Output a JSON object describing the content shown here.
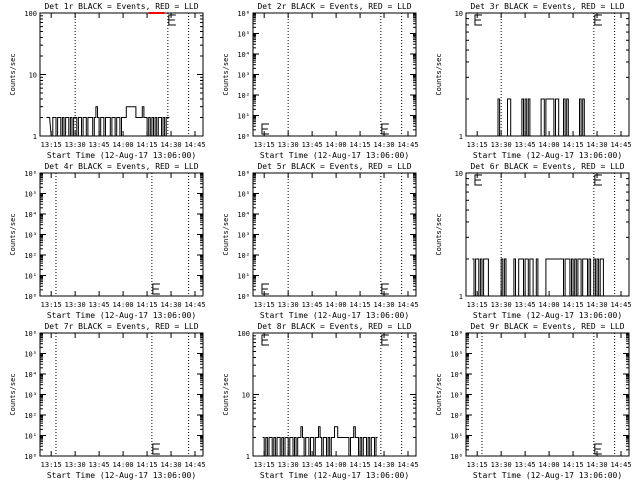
{
  "colors": {
    "background": "#ffffff",
    "axes": "#000000",
    "events": "#000000",
    "lld": "#ff0000"
  },
  "chart_data": [
    {
      "type": "line",
      "title": "Det 1r BLACK = Events, RED = LLD",
      "xlabel": "Start Time (12-Aug-17 13:06:00)",
      "ylabel": "Counts/sec",
      "x_ticks": [
        "13:15",
        "13:30",
        "13:45",
        "14:00",
        "14:15",
        "14:30",
        "14:45"
      ],
      "y_scale": "log",
      "ylim": [
        1,
        100
      ],
      "y_ticks": [
        "1",
        "10",
        "100"
      ],
      "grid": "dotted vertical lines",
      "markers": [
        "13:30",
        "14:28",
        "14:41"
      ],
      "e_markers": [
        {
          "x": "14:28",
          "y": 100
        }
      ],
      "series": [
        {
          "color": "black",
          "x": [
            "13:12",
            "13:13",
            "13:15",
            "13:16",
            "13:17",
            "13:18",
            "13:19",
            "13:20",
            "13:21",
            "13:22",
            "13:23",
            "13:24",
            "13:25",
            "13:26",
            "13:27",
            "13:28",
            "13:29",
            "13:30",
            "13:31",
            "13:32",
            "13:33",
            "13:34",
            "13:35",
            "13:36",
            "13:37",
            "13:38",
            "13:39",
            "13:40",
            "13:41",
            "13:42",
            "13:43",
            "13:44",
            "13:45",
            "13:46",
            "13:47",
            "13:48",
            "13:49",
            "13:50",
            "13:51",
            "13:52",
            "13:53",
            "13:54",
            "13:55",
            "13:56",
            "13:57",
            "13:58",
            "13:59",
            "14:00",
            "14:01",
            "14:02",
            "14:03",
            "14:04",
            "14:05",
            "14:06",
            "14:07",
            "14:08",
            "14:09",
            "14:10",
            "14:11",
            "14:12",
            "14:13",
            "14:14",
            "14:15",
            "14:16",
            "14:17",
            "14:18",
            "14:19",
            "14:20",
            "14:21",
            "14:22",
            "14:23",
            "14:24",
            "14:25",
            "14:26",
            "14:27",
            "14:28"
          ],
          "y": [
            2,
            2,
            1,
            2,
            2,
            1,
            2,
            2,
            1,
            2,
            1,
            2,
            2,
            1,
            2,
            1,
            2,
            2,
            1,
            2,
            2,
            1,
            2,
            2,
            1,
            2,
            2,
            2,
            1,
            2,
            3,
            2,
            1,
            2,
            2,
            1,
            2,
            2,
            2,
            1,
            2,
            2,
            1,
            2,
            2,
            1,
            2,
            2,
            2,
            3,
            3,
            3,
            3,
            3,
            3,
            2,
            2,
            2,
            2,
            3,
            2,
            2,
            1,
            2,
            1,
            2,
            1,
            2,
            1,
            2,
            2,
            1,
            2,
            1,
            2,
            2
          ]
        },
        {
          "color": "red",
          "x": [
            "14:16",
            "14:17",
            "14:18",
            "14:19",
            "14:20",
            "14:21",
            "14:22",
            "14:23",
            "14:24",
            "14:25"
          ],
          "y": [
            100,
            100,
            100,
            100,
            100,
            100,
            100,
            100,
            100,
            100
          ]
        }
      ]
    },
    {
      "type": "line",
      "title": "Det 2r BLACK = Events, RED = LLD",
      "xlabel": "Start Time (12-Aug-17 13:06:00)",
      "ylabel": "Counts/sec",
      "x_ticks": [
        "13:15",
        "13:30",
        "13:45",
        "14:00",
        "14:15",
        "14:30",
        "14:45"
      ],
      "y_scale": "log",
      "ylim": [
        1,
        1000000
      ],
      "y_ticks": [
        "10⁰",
        "10¹",
        "10²",
        "10³",
        "10⁴",
        "10⁵",
        "10⁶"
      ],
      "grid": "dotted vertical lines",
      "markers": [
        "13:30",
        "14:28",
        "14:41"
      ],
      "e_markers": [
        {
          "x": "13:13",
          "y": 1.6
        },
        {
          "x": "14:28",
          "y": 1.6
        }
      ],
      "series": []
    },
    {
      "type": "line",
      "title": "Det 3r BLACK = Events, RED = LLD",
      "xlabel": "Start Time (12-Aug-17 13:06:00)",
      "ylabel": "Counts/sec",
      "x_ticks": [
        "13:15",
        "13:30",
        "13:45",
        "14:00",
        "14:15",
        "14:30",
        "14:45"
      ],
      "y_scale": "log",
      "ylim": [
        1,
        10
      ],
      "y_ticks": [
        "1",
        "10"
      ],
      "grid": "dotted vertical lines",
      "markers": [
        "13:30",
        "14:28",
        "14:41"
      ],
      "e_markers": [
        {
          "x": "13:13",
          "y": 10
        },
        {
          "x": "14:28",
          "y": 10
        }
      ],
      "series": [
        {
          "color": "black",
          "x": [
            "13:27",
            "13:28",
            "13:29",
            "13:30",
            "13:31",
            "13:32",
            "13:33",
            "13:34",
            "13:35",
            "13:36",
            "13:37",
            "13:38",
            "13:39",
            "13:40",
            "13:41",
            "13:42",
            "13:43",
            "13:44",
            "13:45",
            "13:46",
            "13:47",
            "13:48",
            "13:49",
            "13:50",
            "13:51",
            "13:52",
            "13:53",
            "13:54",
            "13:55",
            "13:56",
            "13:57",
            "13:58",
            "13:59",
            "14:00",
            "14:01",
            "14:02",
            "14:03",
            "14:04",
            "14:05",
            "14:06",
            "14:07",
            "14:08",
            "14:09",
            "14:10",
            "14:11",
            "14:12",
            "14:13",
            "14:14",
            "14:15",
            "14:16",
            "14:17",
            "14:18",
            "14:19",
            "14:20",
            "14:21",
            "14:22",
            "14:23",
            "14:24",
            "14:25",
            "14:26"
          ],
          "y": [
            1,
            2,
            1,
            1,
            1,
            1,
            1,
            2,
            2,
            1,
            1,
            1,
            1,
            1,
            1,
            1,
            2,
            1,
            2,
            1,
            2,
            1,
            1,
            1,
            1,
            1,
            1,
            1,
            2,
            2,
            1,
            2,
            2,
            2,
            2,
            2,
            1,
            2,
            2,
            1,
            1,
            1,
            2,
            1,
            2,
            1,
            1,
            1,
            1,
            1,
            1,
            1,
            2,
            1,
            2,
            1,
            1,
            1,
            1,
            1
          ]
        }
      ]
    },
    {
      "type": "line",
      "title": "Det 4r BLACK = Events, RED = LLD",
      "xlabel": "Start Time (12-Aug-17 13:06:00)",
      "ylabel": "Counts/sec",
      "x_ticks": [
        "13:15",
        "13:30",
        "13:45",
        "14:00",
        "14:15",
        "14:30",
        "14:45"
      ],
      "y_scale": "log",
      "ylim": [
        1,
        1000000
      ],
      "y_ticks": [
        "10⁰",
        "10¹",
        "10²",
        "10³",
        "10⁴",
        "10⁵",
        "10⁶"
      ],
      "grid": "dotted vertical lines",
      "markers": [
        "13:18",
        "14:18",
        "14:41"
      ],
      "e_markers": [
        {
          "x": "14:18",
          "y": 1.6
        }
      ],
      "series": []
    },
    {
      "type": "line",
      "title": "Det 5r BLACK = Events, RED = LLD",
      "xlabel": "Start Time (12-Aug-17 13:06:00)",
      "ylabel": "Counts/sec",
      "x_ticks": [
        "13:15",
        "13:30",
        "13:45",
        "14:00",
        "14:15",
        "14:30",
        "14:45"
      ],
      "y_scale": "log",
      "ylim": [
        1,
        1000000
      ],
      "y_ticks": [
        "10⁰",
        "10¹",
        "10²",
        "10³",
        "10⁴",
        "10⁵",
        "10⁶"
      ],
      "grid": "dotted vertical lines",
      "markers": [
        "13:30",
        "14:28",
        "14:41"
      ],
      "e_markers": [
        {
          "x": "13:13",
          "y": 1.6
        },
        {
          "x": "14:28",
          "y": 1.6
        }
      ],
      "series": []
    },
    {
      "type": "line",
      "title": "Det 6r BLACK = Events, RED = LLD",
      "xlabel": "Start Time (12-Aug-17 13:06:00)",
      "ylabel": "Counts/sec",
      "x_ticks": [
        "13:15",
        "13:30",
        "13:45",
        "14:00",
        "14:15",
        "14:30",
        "14:45"
      ],
      "y_scale": "log",
      "ylim": [
        1,
        10
      ],
      "y_ticks": [
        "1",
        "10"
      ],
      "grid": "dotted vertical lines",
      "markers": [
        "13:30",
        "14:28",
        "14:41"
      ],
      "e_markers": [
        {
          "x": "13:13",
          "y": 10
        },
        {
          "x": "14:28",
          "y": 10
        }
      ],
      "series": [
        {
          "color": "black",
          "x": [
            "13:12",
            "13:13",
            "13:14",
            "13:15",
            "13:16",
            "13:17",
            "13:18",
            "13:19",
            "13:20",
            "13:21",
            "13:22",
            "13:23",
            "13:24",
            "13:25",
            "13:26",
            "13:27",
            "13:28",
            "13:29",
            "13:30",
            "13:31",
            "13:32",
            "13:33",
            "13:34",
            "13:35",
            "13:36",
            "13:37",
            "13:38",
            "13:39",
            "13:40",
            "13:41",
            "13:42",
            "13:43",
            "13:44",
            "13:45",
            "13:46",
            "13:47",
            "13:48",
            "13:49",
            "13:50",
            "13:51",
            "13:52",
            "13:53",
            "13:54",
            "13:55",
            "13:56",
            "13:57",
            "13:58",
            "13:59",
            "14:00",
            "14:01",
            "14:02",
            "14:03",
            "14:04",
            "14:05",
            "14:06",
            "14:07",
            "14:08",
            "14:09",
            "14:10",
            "14:11",
            "14:12",
            "14:13",
            "14:14",
            "14:15",
            "14:16",
            "14:17",
            "14:18",
            "14:19",
            "14:20",
            "14:21",
            "14:22",
            "14:23",
            "14:24",
            "14:25",
            "14:26",
            "14:27",
            "14:28",
            "14:29",
            "14:30",
            "14:31",
            "14:32",
            "14:33",
            "14:34"
          ],
          "y": [
            2,
            1,
            2,
            2,
            1,
            2,
            1,
            2,
            2,
            2,
            1,
            1,
            1,
            1,
            1,
            1,
            1,
            1,
            2,
            1,
            2,
            1,
            1,
            1,
            1,
            1,
            2,
            1,
            1,
            2,
            2,
            2,
            1,
            2,
            2,
            1,
            2,
            2,
            1,
            1,
            2,
            1,
            1,
            1,
            1,
            1,
            2,
            2,
            2,
            2,
            2,
            2,
            2,
            2,
            2,
            2,
            2,
            1,
            2,
            2,
            2,
            1,
            2,
            1,
            2,
            1,
            2,
            2,
            1,
            2,
            2,
            2,
            1,
            2,
            1,
            1,
            2,
            1,
            2,
            1,
            2,
            2,
            1
          ]
        }
      ]
    },
    {
      "type": "line",
      "title": "Det 7r BLACK = Events, RED = LLD",
      "xlabel": "Start Time (12-Aug-17 13:06:00)",
      "ylabel": "Counts/sec",
      "x_ticks": [
        "13:15",
        "13:30",
        "13:45",
        "14:00",
        "14:15",
        "14:30",
        "14:45"
      ],
      "y_scale": "log",
      "ylim": [
        1,
        1000000
      ],
      "y_ticks": [
        "10⁰",
        "10¹",
        "10²",
        "10³",
        "10⁴",
        "10⁵",
        "10⁶"
      ],
      "grid": "dotted vertical lines",
      "markers": [
        "13:18",
        "14:18",
        "14:41"
      ],
      "e_markers": [
        {
          "x": "14:18",
          "y": 1.6
        }
      ],
      "series": []
    },
    {
      "type": "line",
      "title": "Det 8r BLACK = Events, RED = LLD",
      "xlabel": "Start Time (12-Aug-17 13:06:00)",
      "ylabel": "Counts/sec",
      "x_ticks": [
        "13:15",
        "13:30",
        "13:45",
        "14:00",
        "14:15",
        "14:30",
        "14:45"
      ],
      "y_scale": "log",
      "ylim": [
        1,
        100
      ],
      "y_ticks": [
        "1",
        "10",
        "100"
      ],
      "grid": "dotted vertical lines",
      "markers": [
        "13:30",
        "14:28",
        "14:41"
      ],
      "e_markers": [
        {
          "x": "13:13",
          "y": 100
        },
        {
          "x": "14:28",
          "y": 100
        }
      ],
      "series": [
        {
          "color": "black",
          "x": [
            "13:14",
            "13:15",
            "13:16",
            "13:17",
            "13:18",
            "13:19",
            "13:20",
            "13:21",
            "13:22",
            "13:23",
            "13:24",
            "13:25",
            "13:26",
            "13:27",
            "13:28",
            "13:29",
            "13:30",
            "13:31",
            "13:32",
            "13:33",
            "13:34",
            "13:35",
            "13:36",
            "13:37",
            "13:38",
            "13:39",
            "13:40",
            "13:41",
            "13:42",
            "13:43",
            "13:44",
            "13:45",
            "13:46",
            "13:47",
            "13:48",
            "13:49",
            "13:50",
            "13:51",
            "13:52",
            "13:53",
            "13:54",
            "13:55",
            "13:56",
            "13:57",
            "13:58",
            "13:59",
            "14:00",
            "14:01",
            "14:02",
            "14:03",
            "14:04",
            "14:05",
            "14:06",
            "14:07",
            "14:08",
            "14:09",
            "14:10",
            "14:11",
            "14:12",
            "14:13",
            "14:14",
            "14:15",
            "14:16",
            "14:17",
            "14:18",
            "14:19",
            "14:20",
            "14:21",
            "14:22",
            "14:23",
            "14:24",
            "14:25"
          ],
          "y": [
            2,
            1,
            2,
            1,
            2,
            2,
            1,
            2,
            1,
            2,
            2,
            1,
            2,
            1,
            2,
            2,
            1,
            2,
            2,
            1,
            2,
            1,
            2,
            2,
            3,
            2,
            1,
            2,
            2,
            1,
            2,
            2,
            1,
            2,
            2,
            3,
            2,
            1,
            2,
            2,
            1,
            2,
            1,
            2,
            2,
            3,
            3,
            2,
            2,
            2,
            2,
            2,
            2,
            2,
            1,
            2,
            2,
            3,
            2,
            2,
            1,
            2,
            1,
            2,
            2,
            1,
            2,
            1,
            2,
            2,
            1,
            2
          ]
        }
      ]
    },
    {
      "type": "line",
      "title": "Det 9r BLACK = Events, RED = LLD",
      "xlabel": "Start Time (12-Aug-17 13:06:00)",
      "ylabel": "Counts/sec",
      "x_ticks": [
        "13:15",
        "13:30",
        "13:45",
        "14:00",
        "14:15",
        "14:30",
        "14:45"
      ],
      "y_scale": "log",
      "ylim": [
        1,
        1000000
      ],
      "y_ticks": [
        "10⁰",
        "10¹",
        "10²",
        "10³",
        "10⁴",
        "10⁵",
        "10⁶"
      ],
      "grid": "dotted vertical lines",
      "markers": [
        "13:18",
        "14:28",
        "14:41"
      ],
      "e_markers": [
        {
          "x": "14:28",
          "y": 1.6
        }
      ],
      "series": []
    }
  ]
}
